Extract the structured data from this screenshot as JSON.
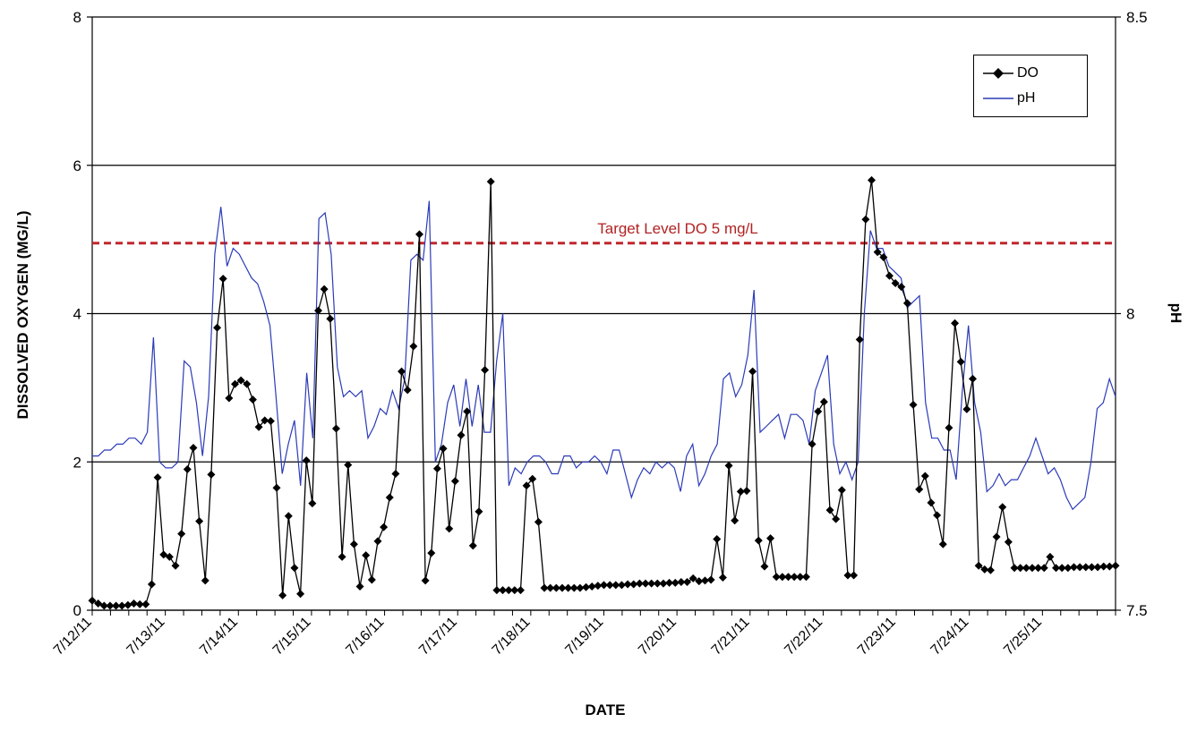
{
  "chart_data": {
    "type": "line",
    "xlabel": "DATE",
    "ylabel_left": "DISSOLVED OXYGEN (MG/L)",
    "ylabel_right": "pH",
    "ylim_left": [
      0,
      8
    ],
    "yticks_left": [
      "0",
      "2",
      "4",
      "6",
      "8"
    ],
    "ylim_right": [
      7.5,
      8.5
    ],
    "yticks_right": [
      "7.5",
      "8",
      "8.5"
    ],
    "x_start_date": "7/12/11",
    "x_end_date": "7/26/11",
    "x_tick_labels": [
      "7/12/11",
      "7/13/11",
      "7/14/11",
      "7/15/11",
      "7/16/11",
      "7/17/11",
      "7/18/11",
      "7/19/11",
      "7/20/11",
      "7/21/11",
      "7/22/11",
      "7/23/11",
      "7/24/11",
      "7/25/11"
    ],
    "grid": "horizontal major lines at 2, 4, 6 mg/L",
    "legend_position": "top-right",
    "target_line": {
      "value": 4.95,
      "label": "Target Level DO 5 mg/L",
      "color": "#c0272d",
      "style": "dashed"
    },
    "series": [
      {
        "name": "DO",
        "axis": "left",
        "color": "#000000",
        "marker": "diamond",
        "values": [
          0.13,
          0.09,
          0.06,
          0.06,
          0.06,
          0.06,
          0.07,
          0.09,
          0.08,
          0.08,
          0.35,
          1.79,
          0.75,
          0.72,
          0.6,
          1.03,
          1.9,
          2.19,
          1.2,
          0.4,
          1.83,
          3.81,
          4.47,
          2.86,
          3.05,
          3.1,
          3.05,
          2.84,
          2.47,
          2.56,
          2.55,
          1.65,
          0.2,
          1.27,
          0.57,
          0.22,
          2.02,
          1.44,
          4.04,
          4.33,
          3.93,
          2.45,
          0.72,
          1.96,
          0.89,
          0.32,
          0.74,
          0.41,
          0.93,
          1.12,
          1.52,
          1.84,
          3.22,
          2.97,
          3.56,
          5.07,
          0.4,
          0.77,
          1.91,
          2.18,
          1.1,
          1.74,
          2.36,
          2.68,
          0.87,
          1.33,
          3.24,
          5.78,
          0.27,
          0.27,
          0.27,
          0.27,
          0.27,
          1.68,
          1.77,
          1.19,
          0.3,
          0.3,
          0.3,
          0.3,
          0.3,
          0.3,
          0.3,
          0.31,
          0.32,
          0.33,
          0.34,
          0.34,
          0.34,
          0.34,
          0.35,
          0.35,
          0.36,
          0.36,
          0.36,
          0.36,
          0.36,
          0.37,
          0.37,
          0.38,
          0.38,
          0.43,
          0.39,
          0.4,
          0.41,
          0.96,
          0.44,
          1.95,
          1.21,
          1.6,
          1.61,
          3.22,
          0.94,
          0.59,
          0.97,
          0.45,
          0.45,
          0.45,
          0.45,
          0.45,
          0.45,
          2.24,
          2.68,
          2.81,
          1.35,
          1.23,
          1.62,
          0.47,
          0.47,
          3.65,
          5.27,
          5.8,
          4.83,
          4.76,
          4.51,
          4.41,
          4.36,
          4.14,
          2.77,
          1.63,
          1.81,
          1.45,
          1.28,
          0.89,
          2.46,
          3.87,
          3.35,
          2.71,
          3.12,
          0.6,
          0.55,
          0.54,
          0.99,
          1.39,
          0.92,
          0.57,
          0.57,
          0.57,
          0.57,
          0.57,
          0.57,
          0.72,
          0.57,
          0.57,
          0.57,
          0.58,
          0.58,
          0.58,
          0.58,
          0.58,
          0.59,
          0.59,
          0.6
        ]
      },
      {
        "name": "pH",
        "axis": "right",
        "color": "#2b3bb8",
        "marker": "none",
        "values": [
          7.76,
          7.76,
          7.77,
          7.77,
          7.78,
          7.78,
          7.79,
          7.79,
          7.78,
          7.8,
          7.96,
          7.75,
          7.74,
          7.74,
          7.75,
          7.92,
          7.91,
          7.85,
          7.76,
          7.86,
          8.1,
          8.18,
          8.08,
          8.11,
          8.1,
          8.08,
          8.06,
          8.05,
          8.02,
          7.98,
          7.86,
          7.73,
          7.78,
          7.82,
          7.71,
          7.9,
          7.79,
          8.16,
          8.17,
          8.1,
          7.91,
          7.86,
          7.87,
          7.86,
          7.87,
          7.79,
          7.81,
          7.84,
          7.83,
          7.87,
          7.84,
          7.89,
          8.09,
          8.1,
          8.09,
          8.19,
          7.75,
          7.78,
          7.85,
          7.88,
          7.81,
          7.89,
          7.81,
          7.88,
          7.8,
          7.8,
          7.92,
          8.0,
          7.71,
          7.74,
          7.73,
          7.75,
          7.76,
          7.76,
          7.75,
          7.73,
          7.73,
          7.76,
          7.76,
          7.74,
          7.75,
          7.75,
          7.76,
          7.75,
          7.73,
          7.77,
          7.77,
          7.73,
          7.69,
          7.72,
          7.74,
          7.73,
          7.75,
          7.74,
          7.75,
          7.74,
          7.7,
          7.76,
          7.78,
          7.71,
          7.73,
          7.76,
          7.78,
          7.89,
          7.9,
          7.86,
          7.88,
          7.93,
          8.04,
          7.8,
          7.81,
          7.82,
          7.83,
          7.79,
          7.83,
          7.83,
          7.82,
          7.78,
          7.87,
          7.9,
          7.93,
          7.78,
          7.73,
          7.75,
          7.72,
          7.75,
          8.0,
          8.14,
          8.11,
          8.11,
          8.08,
          8.07,
          8.06,
          8.01,
          8.02,
          8.03,
          7.85,
          7.79,
          7.79,
          7.77,
          7.77,
          7.72,
          7.87,
          7.98,
          7.85,
          7.8,
          7.7,
          7.71,
          7.73,
          7.71,
          7.72,
          7.72,
          7.74,
          7.76,
          7.79,
          7.76,
          7.73,
          7.74,
          7.72,
          7.69,
          7.67,
          7.68,
          7.69,
          7.75,
          7.84,
          7.85,
          7.89,
          7.86
        ]
      }
    ]
  }
}
